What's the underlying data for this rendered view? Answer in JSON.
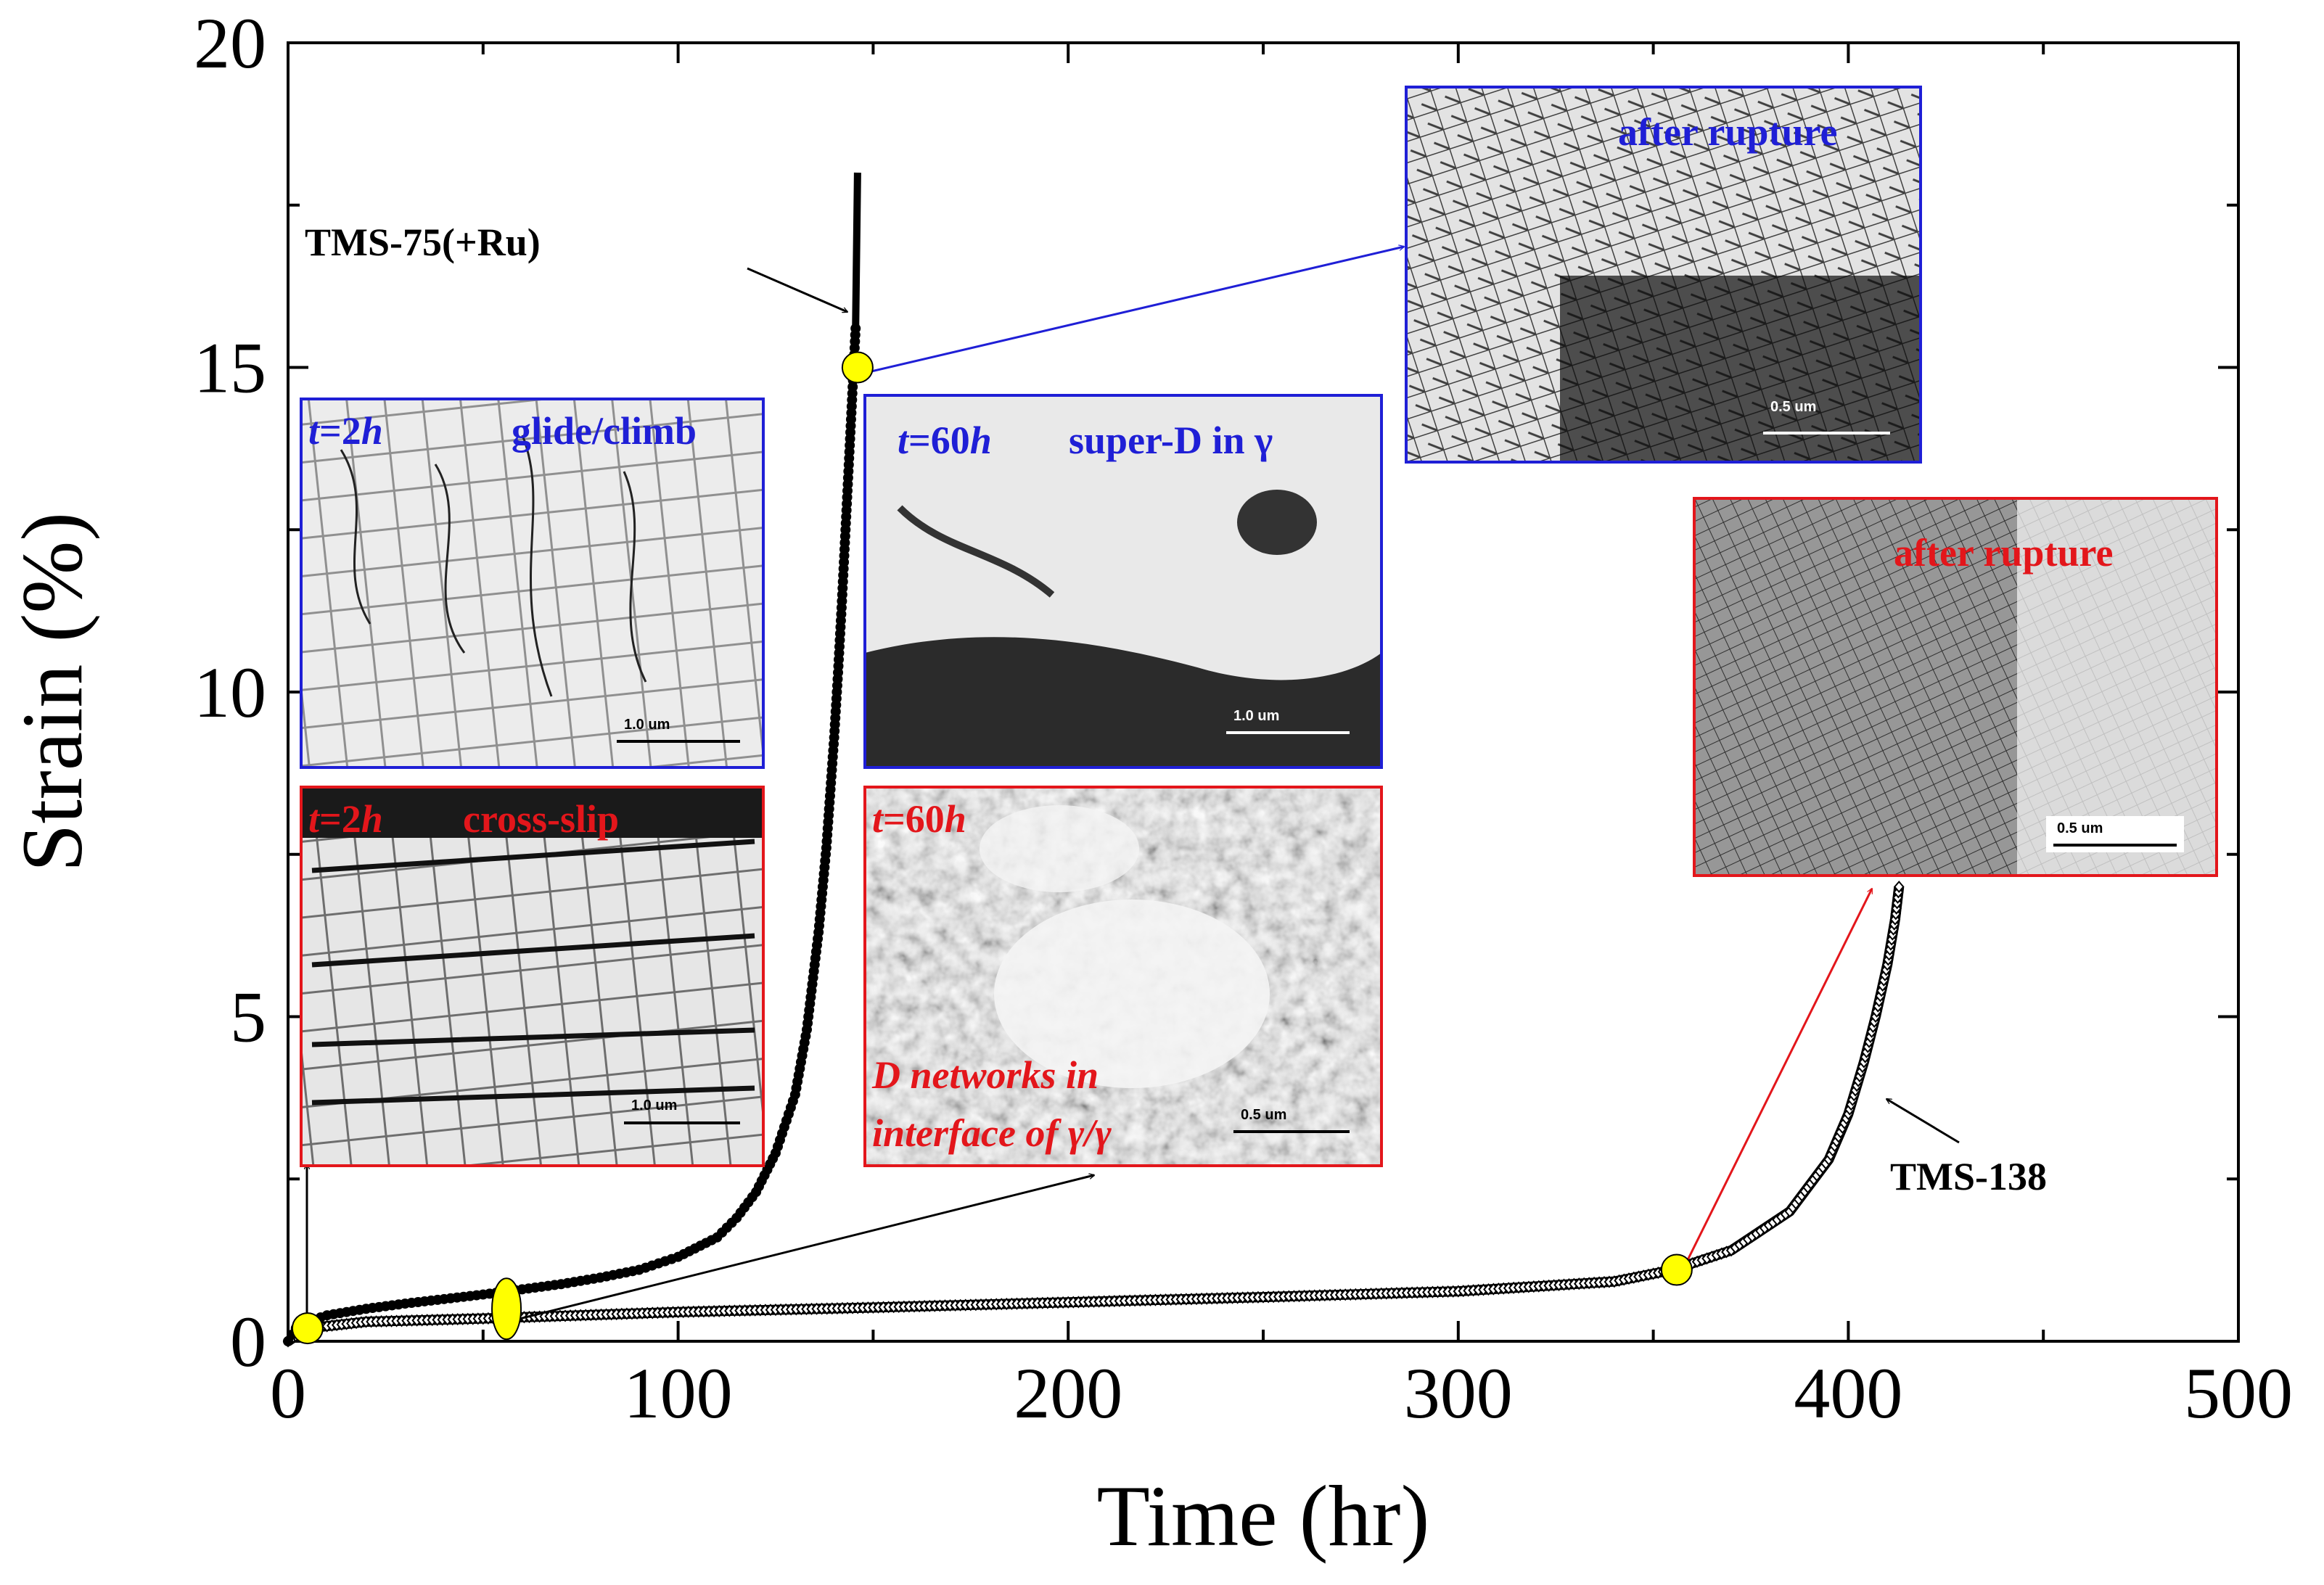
{
  "chart_data": {
    "type": "line",
    "title": "",
    "xlabel": "Time (hr)",
    "ylabel": "Strain (%)",
    "xlim": [
      0,
      500
    ],
    "ylim": [
      0,
      20
    ],
    "xticks": [
      0,
      100,
      200,
      300,
      400,
      500
    ],
    "yticks": [
      0,
      5,
      10,
      15,
      20
    ],
    "series": [
      {
        "name": "TMS-75(+Ru)",
        "marker": "filled-circle",
        "color": "#000000",
        "x": [
          0,
          2,
          5,
          10,
          20,
          30,
          40,
          50,
          60,
          70,
          80,
          90,
          100,
          110,
          115,
          120,
          125,
          130,
          133,
          136,
          138,
          140,
          141,
          142,
          143,
          144,
          145,
          145.5,
          146
        ],
        "y": [
          0,
          0.2,
          0.3,
          0.4,
          0.5,
          0.58,
          0.65,
          0.72,
          0.8,
          0.88,
          0.98,
          1.1,
          1.3,
          1.6,
          1.9,
          2.3,
          2.9,
          3.8,
          4.8,
          6.3,
          7.6,
          9.3,
          10.3,
          11.4,
          12.6,
          13.8,
          15.0,
          15.6,
          18.0
        ]
      },
      {
        "name": "TMS-138",
        "marker": "open-diamond",
        "color": "#000000",
        "x": [
          0,
          5,
          20,
          50,
          100,
          150,
          200,
          250,
          300,
          340,
          355,
          370,
          385,
          395,
          400,
          404,
          407,
          410,
          412,
          413
        ],
        "y": [
          0,
          0.2,
          0.3,
          0.35,
          0.45,
          0.52,
          0.6,
          0.68,
          0.77,
          0.92,
          1.1,
          1.4,
          2.0,
          2.8,
          3.5,
          4.3,
          5.0,
          5.8,
          6.5,
          7.0
        ]
      }
    ],
    "highlight_points": [
      {
        "x": 5,
        "y": 0.2,
        "shape": "circle"
      },
      {
        "x": 56,
        "y": 0.5,
        "shape": "ellipse"
      },
      {
        "x": 146,
        "y": 15.0,
        "shape": "circle"
      },
      {
        "x": 356,
        "y": 1.1,
        "shape": "circle"
      }
    ],
    "annotations": {
      "tms75": "TMS-75(+Ru)",
      "tms138": "TMS-138",
      "inset_top_rupture": "after rupture",
      "inset_right_rupture": "after rupture",
      "inset_2h_blue_t": "t",
      "inset_2h_blue_eq": "=2",
      "inset_2h_blue_h": "h",
      "inset_2h_blue_text": "glide/climb",
      "inset_60h_blue_t": "t",
      "inset_60h_blue_eq": "=60",
      "inset_60h_blue_h": "h",
      "inset_60h_blue_text": "super-D in γ",
      "inset_2h_red_t": "t",
      "inset_2h_red_eq": "=2",
      "inset_2h_red_h": "h",
      "inset_2h_red_text": "cross-slip",
      "inset_60h_red_t": "t",
      "inset_60h_red_eq": "=60",
      "inset_60h_red_h": "h",
      "inset_60h_red_text1": "D networks in",
      "inset_60h_red_text2": "interface of γ/γ",
      "scale_top_rupture": "0.5 um",
      "scale_right_rupture": "0.5 um",
      "scale_2h_blue": "1.0 um",
      "scale_60h_blue": "1.0 um",
      "scale_2h_red": "1.0 um",
      "scale_60h_red": "0.5 um"
    }
  }
}
